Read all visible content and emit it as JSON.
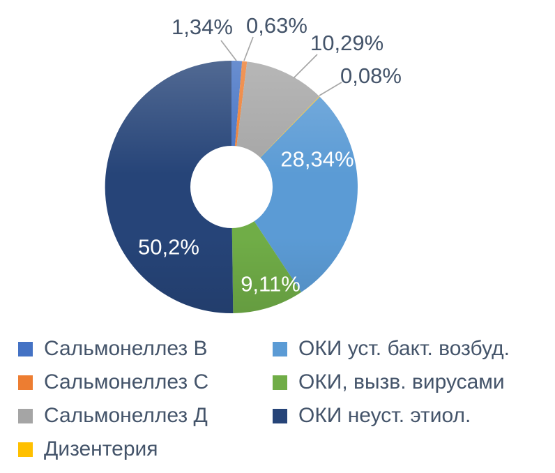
{
  "chart_data": {
    "type": "pie",
    "subtype": "donut",
    "title": "",
    "unit": "%",
    "decimal_separator": ",",
    "start_angle_deg": 0,
    "direction": "clockwise",
    "inner_radius_ratio": 0.33,
    "legend_position": "bottom",
    "label_text_color": "#44546A",
    "leader_line_color": "#A6A6A6",
    "background_color": "#FFFFFF",
    "slices": [
      {
        "name": "Сальмонеллез В",
        "value": 1.34,
        "label": "1,34%",
        "color": "#4472C4",
        "label_placement": "outside"
      },
      {
        "name": "Сальмонеллез С",
        "value": 0.63,
        "label": "0,63%",
        "color": "#ED7D31",
        "label_placement": "outside"
      },
      {
        "name": "Сальмонеллез Д",
        "value": 10.29,
        "label": "10,29%",
        "color": "#A5A5A5",
        "label_placement": "outside"
      },
      {
        "name": "Дизентерия",
        "value": 0.08,
        "label": "0,08%",
        "color": "#FFC000",
        "label_placement": "outside"
      },
      {
        "name": "ОКИ уст. бакт. возбуд.",
        "value": 28.34,
        "label": "28,34%",
        "color": "#5B9BD5",
        "label_placement": "inside"
      },
      {
        "name": "ОКИ, вызв. вирусами",
        "value": 9.11,
        "label": "9,11%",
        "color": "#70AD47",
        "label_placement": "inside"
      },
      {
        "name": "ОКИ неуст. этиол.",
        "value": 50.2,
        "label": "50,2%",
        "color": "#264478",
        "label_placement": "inside"
      }
    ],
    "legend_columns": {
      "left_slice_indexes": [
        0,
        1,
        2,
        3
      ],
      "right_slice_indexes": [
        4,
        5,
        6
      ]
    }
  }
}
